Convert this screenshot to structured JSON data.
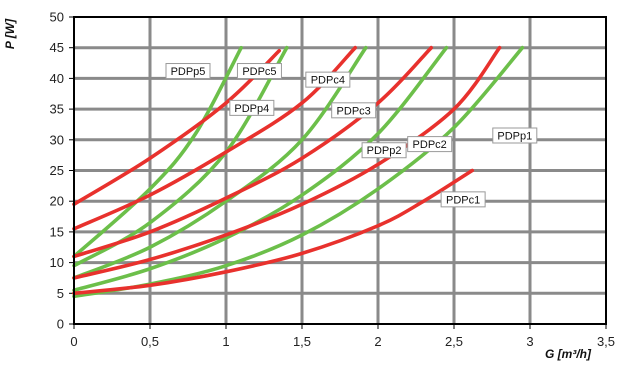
{
  "chart_data": {
    "type": "line",
    "title": "",
    "xlabel": "G [m³/h]",
    "ylabel": "P [W]",
    "xlim": [
      0,
      3.5
    ],
    "ylim": [
      0,
      50
    ],
    "x_ticks": [
      "0",
      "0,5",
      "1",
      "1,5",
      "2",
      "2,5",
      "3",
      "3,5"
    ],
    "y_ticks": [
      "0",
      "5",
      "10",
      "15",
      "20",
      "25",
      "30",
      "35",
      "40",
      "45",
      "50"
    ],
    "grid": true,
    "legend": "callout labels on curves",
    "colors": {
      "PDPp": "#e8312d",
      "PDPc": "#6cbf4a",
      "grid": "#8a8a8a",
      "axis": "#000000"
    },
    "series": [
      {
        "name": "PDPp1",
        "color": "#e8312d",
        "x": [
          0,
          0.5,
          1,
          1.5,
          2,
          2.5,
          2.8
        ],
        "y": [
          7.5,
          10.5,
          14.5,
          19.5,
          26,
          35,
          45
        ]
      },
      {
        "name": "PDPp2",
        "color": "#e8312d",
        "x": [
          0,
          0.5,
          1,
          1.5,
          2,
          2.35
        ],
        "y": [
          11,
          15,
          20.5,
          27,
          36,
          45
        ]
      },
      {
        "name": "PDPp4",
        "color": "#e8312d",
        "x": [
          0,
          0.5,
          1,
          1.5,
          1.85
        ],
        "y": [
          15.5,
          21,
          28,
          36,
          45
        ]
      },
      {
        "name": "PDPp5",
        "color": "#e8312d",
        "x": [
          0,
          0.5,
          1,
          1.35
        ],
        "y": [
          19.5,
          27,
          36,
          44.5
        ]
      },
      {
        "name": "PDPc1",
        "color": "#e8312d",
        "x": [
          0,
          0.5,
          1,
          1.5,
          2,
          2.3,
          2.62
        ],
        "y": [
          5,
          6.3,
          8.5,
          11.5,
          16,
          20,
          25
        ]
      },
      {
        "name": "PDPc2",
        "color": "#6cbf4a",
        "x": [
          0,
          0.5,
          1,
          1.5,
          2,
          2.5,
          2.95
        ],
        "y": [
          4.5,
          6.5,
          9.5,
          14.5,
          22,
          32,
          45
        ]
      },
      {
        "name": "PDPc3",
        "color": "#6cbf4a",
        "x": [
          0,
          0.5,
          1,
          1.5,
          2,
          2.45
        ],
        "y": [
          5.5,
          9,
          14,
          21,
          31,
          45
        ]
      },
      {
        "name": "PDPc4",
        "color": "#6cbf4a",
        "x": [
          0,
          0.5,
          1,
          1.5,
          1.92
        ],
        "y": [
          7.5,
          12.5,
          20,
          30,
          45
        ]
      },
      {
        "name": "PDPc5",
        "color": "#6cbf4a",
        "x": [
          0,
          0.5,
          1,
          1.4
        ],
        "y": [
          9.5,
          16.5,
          28,
          45
        ]
      },
      {
        "name": "PDPp5",
        "color": "#6cbf4a",
        "x": [
          0,
          0.5,
          0.8,
          1.1
        ],
        "y": [
          11,
          22,
          31,
          45
        ]
      }
    ],
    "labels": [
      {
        "text": "PDPp5",
        "x": 0.75,
        "y": 41.2
      },
      {
        "text": "PDPc5",
        "x": 1.22,
        "y": 41.2
      },
      {
        "text": "PDPc4",
        "x": 1.67,
        "y": 39.8
      },
      {
        "text": "PDPp4",
        "x": 1.17,
        "y": 35.2
      },
      {
        "text": "PDPc3",
        "x": 1.84,
        "y": 34.8
      },
      {
        "text": "PDPp2",
        "x": 2.04,
        "y": 28.3
      },
      {
        "text": "PDPc2",
        "x": 2.34,
        "y": 29.3
      },
      {
        "text": "PDPp1",
        "x": 2.9,
        "y": 30.7
      },
      {
        "text": "PDPc1",
        "x": 2.56,
        "y": 20.3
      }
    ]
  }
}
